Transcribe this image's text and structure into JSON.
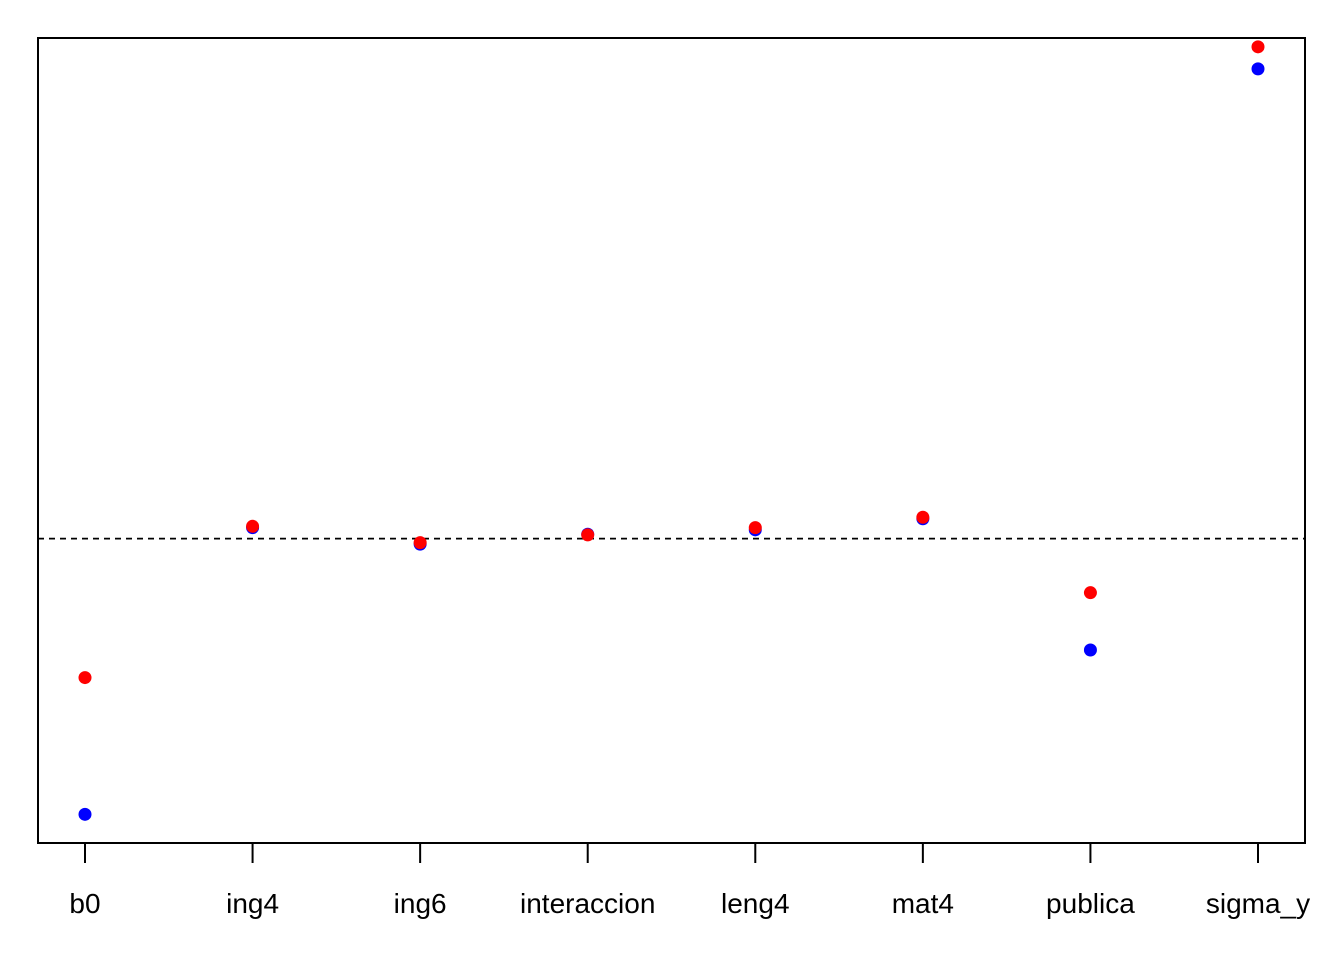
{
  "chart_data": {
    "type": "scatter",
    "categories": [
      "b0",
      "ing4",
      "ing6",
      "interaccion",
      "leng4",
      "mat4",
      "publica",
      "sigma_y"
    ],
    "series": [
      {
        "color": "#0000ff",
        "values": [
          -12.5,
          0.5,
          -0.25,
          0.2,
          0.4,
          0.9,
          -5.05,
          21.3
        ]
      },
      {
        "color": "#ff0000",
        "values": [
          -6.3,
          0.56,
          -0.18,
          0.17,
          0.5,
          0.97,
          -2.45,
          22.3
        ]
      }
    ],
    "reference_line": {
      "y": 0,
      "style": "dashed"
    },
    "ylim": [
      -13.8,
      22.7
    ],
    "y_axis_shown": false,
    "grid": false,
    "legend": "none"
  }
}
